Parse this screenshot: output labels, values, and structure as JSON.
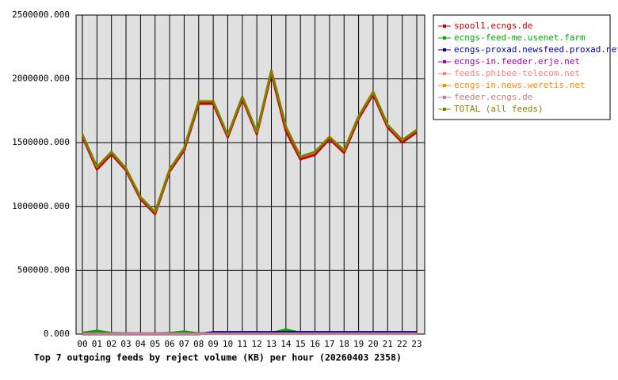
{
  "chart_data": {
    "type": "line",
    "title": "Top 7 outgoing feeds by reject volume (KB) per hour (20260403 2358)",
    "categories": [
      "00",
      "01",
      "02",
      "03",
      "04",
      "05",
      "06",
      "07",
      "08",
      "09",
      "10",
      "11",
      "12",
      "13",
      "14",
      "15",
      "16",
      "17",
      "18",
      "19",
      "20",
      "21",
      "22",
      "23"
    ],
    "ylim": [
      0,
      2500000
    ],
    "yticks": [
      {
        "value": 0,
        "label": "0.000"
      },
      {
        "value": 500000,
        "label": "500000.000"
      },
      {
        "value": 1000000,
        "label": "1000000.000"
      },
      {
        "value": 1500000,
        "label": "1500000.000"
      },
      {
        "value": 2000000,
        "label": "2000000.000"
      },
      {
        "value": 2500000,
        "label": "2500000.000"
      }
    ],
    "grid": true,
    "legend": "right",
    "series": [
      {
        "name": "spool1.ecngs.de",
        "color": "#cc0000",
        "values": [
          1548000,
          1290000,
          1410000,
          1283000,
          1058000,
          940000,
          1275000,
          1440000,
          1805000,
          1805000,
          1542000,
          1845000,
          1567000,
          2045000,
          1590000,
          1370000,
          1405000,
          1530000,
          1420000,
          1688000,
          1880000,
          1620000,
          1502000,
          1582000
        ]
      },
      {
        "name": "ecngs-feed-me.usenet.farm",
        "color": "#00aa00",
        "values": [
          10000,
          25000,
          8000,
          5000,
          3000,
          3000,
          8000,
          20000,
          5000,
          8000,
          5000,
          5000,
          5000,
          8000,
          35000,
          10000,
          5000,
          5000,
          8000,
          5000,
          5000,
          5000,
          5000,
          5000
        ]
      },
      {
        "name": "ecngs-proxad.newsfeed.proxad.net",
        "color": "#0000aa",
        "values": [
          0,
          0,
          0,
          0,
          0,
          0,
          0,
          0,
          0,
          15000,
          15000,
          15000,
          15000,
          15000,
          15000,
          15000,
          15000,
          15000,
          15000,
          15000,
          15000,
          15000,
          15000,
          15000
        ]
      },
      {
        "name": "ecngs-in.feeder.erje.net",
        "color": "#aa00aa",
        "values": [
          5000,
          5000,
          5000,
          5000,
          5000,
          5000,
          5000,
          5000,
          5000,
          5000,
          5000,
          5000,
          5000,
          5000,
          5000,
          5000,
          5000,
          5000,
          5000,
          5000,
          5000,
          5000,
          5000,
          5000
        ]
      },
      {
        "name": "feeds.phibee-telecom.net",
        "color": "#ff8080",
        "values": [
          3000,
          3000,
          3000,
          3000,
          3000,
          3000,
          3000,
          3000,
          3000,
          3000,
          3000,
          3000,
          3000,
          3000,
          3000,
          3000,
          3000,
          3000,
          3000,
          3000,
          3000,
          3000,
          3000,
          3000
        ]
      },
      {
        "name": "ecngs-in.news.weretis.net",
        "color": "#ff8800",
        "values": [
          3000,
          3000,
          3000,
          3000,
          3000,
          3000,
          3000,
          3000,
          3000,
          3000,
          3000,
          3000,
          3000,
          3000,
          3000,
          3000,
          3000,
          3000,
          3000,
          3000,
          3000,
          3000,
          3000,
          3000
        ]
      },
      {
        "name": "feeder.ecngs.de",
        "color": "#c08080",
        "values": [
          2000,
          2000,
          2000,
          2000,
          2000,
          2000,
          2000,
          2000,
          2000,
          2000,
          2000,
          2000,
          2000,
          2000,
          2000,
          2000,
          2000,
          2000,
          2000,
          2000,
          2000,
          2000,
          2000,
          2000
        ]
      },
      {
        "name": "TOTAL (all feeds)",
        "color": "#808000",
        "values": [
          1563000,
          1309000,
          1427000,
          1297000,
          1073000,
          955000,
          1290000,
          1458000,
          1824000,
          1824000,
          1557000,
          1861000,
          1582000,
          2066000,
          1625000,
          1390000,
          1427000,
          1545000,
          1439000,
          1706000,
          1898000,
          1638000,
          1520000,
          1600000
        ]
      }
    ]
  }
}
